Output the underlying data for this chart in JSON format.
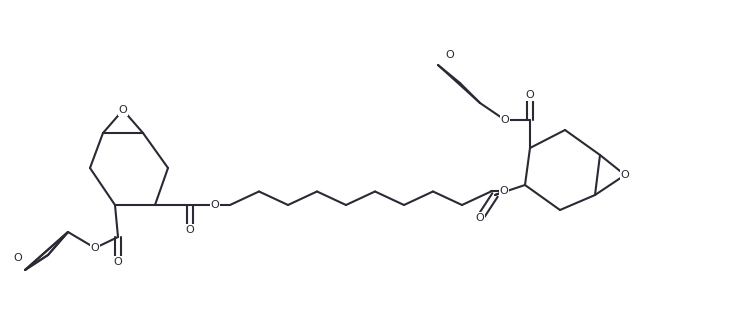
{
  "figsize": [
    7.48,
    3.21
  ],
  "dpi": 100,
  "bg_color": "white",
  "line_color": "#2a2a35",
  "line_width": 1.5,
  "font_size": 8.5,
  "xlim": [
    0,
    7.48
  ],
  "ylim": [
    0,
    3.21
  ]
}
